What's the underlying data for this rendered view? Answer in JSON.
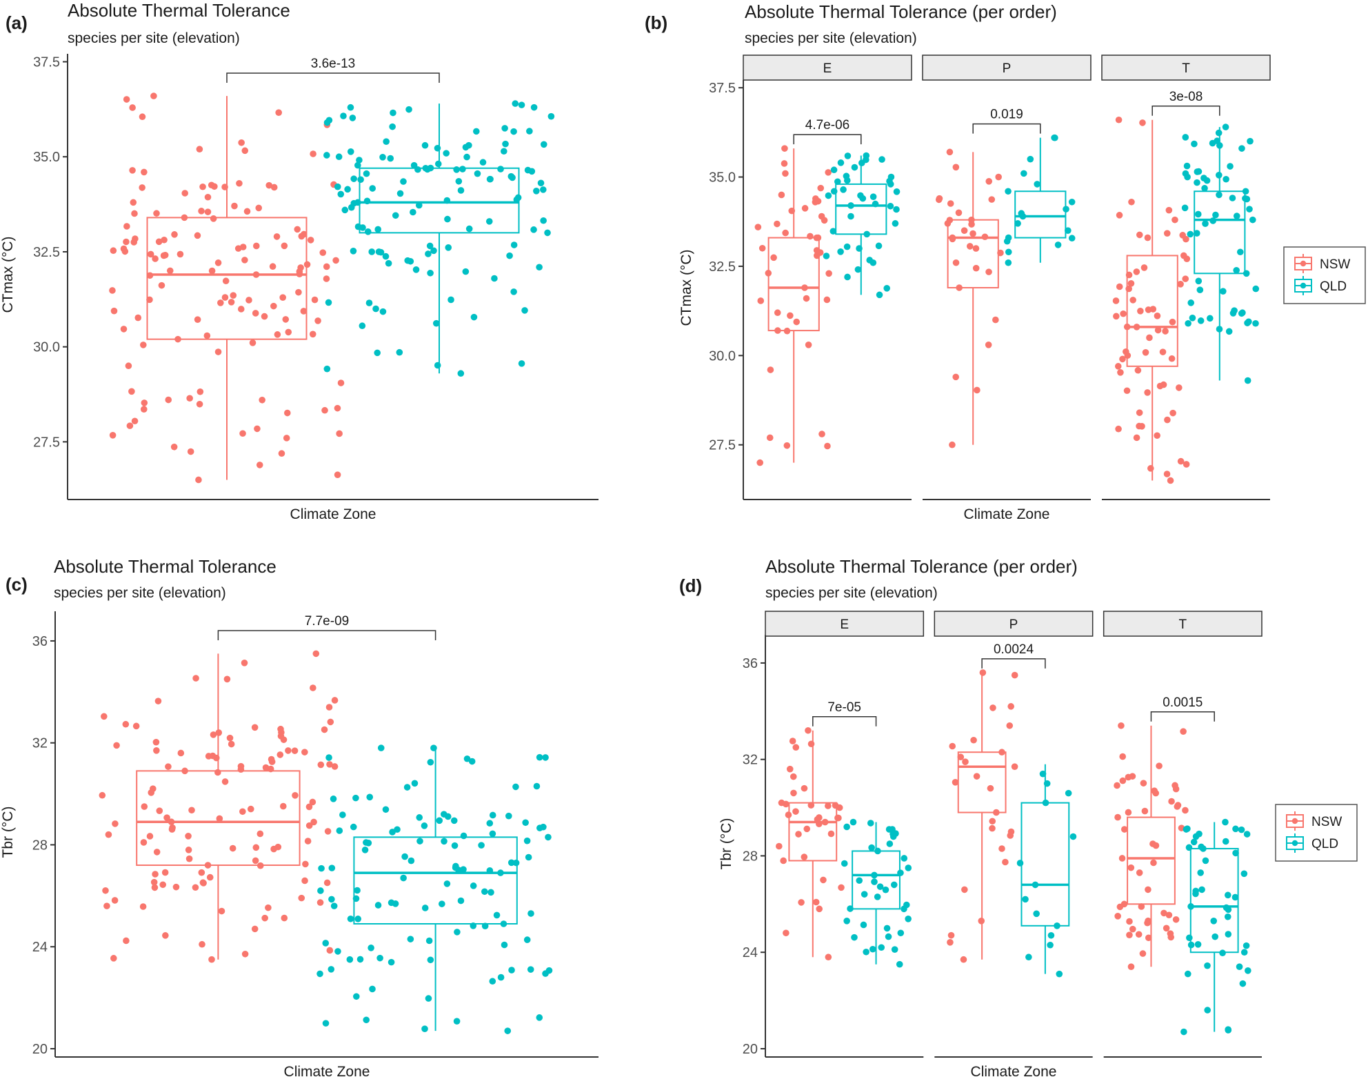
{
  "colors": {
    "NSW": "#F8766D",
    "QLD": "#00BFC4",
    "axis": "#333333",
    "strip_fill": "#EBEBEB",
    "strip_stroke": "#333333"
  },
  "legend": {
    "entries": [
      "NSW",
      "QLD"
    ]
  },
  "chart_data": [
    {
      "id": "a",
      "type": "boxplot_with_jitter",
      "panel_label": "(a)",
      "title": "Absolute Thermal Tolerance",
      "subtitle": "species per site (elevation)",
      "xlabel": "Climate Zone",
      "ylabel": "CTmax (°C)",
      "ylim": [
        26.2,
        37.6
      ],
      "yticks": [
        "27.5",
        "30.0",
        "32.5",
        "35.0",
        "37.5"
      ],
      "ytick_values": [
        27.5,
        30.0,
        32.5,
        35.0,
        37.5
      ],
      "facets": [
        {
          "strip": "",
          "pvalue": "3.6e-13",
          "groups": [
            {
              "name": "NSW",
              "min": 26.5,
              "q1": 30.2,
              "median": 31.9,
              "q3": 33.4,
              "max": 36.6,
              "n": 130,
              "seed": 11,
              "dist": [
                26.5,
                27.6,
                28.6,
                29.5,
                30.2,
                30.8,
                31.3,
                31.9,
                32.4,
                32.9,
                33.4,
                33.8,
                34.3,
                35.2,
                36.6
              ]
            },
            {
              "name": "QLD",
              "min": 29.3,
              "q1": 33.0,
              "median": 33.8,
              "q3": 34.7,
              "max": 36.4,
              "n": 120,
              "seed": 23,
              "dist": [
                29.3,
                31.0,
                31.8,
                32.5,
                33.0,
                33.3,
                33.6,
                33.8,
                34.1,
                34.4,
                34.7,
                35.0,
                35.4,
                35.9,
                36.4
              ]
            }
          ]
        }
      ]
    },
    {
      "id": "b",
      "type": "boxplot_with_jitter",
      "panel_label": "(b)",
      "title": "Absolute Thermal Tolerance (per order)",
      "subtitle": "species per site (elevation)",
      "xlabel": "Climate Zone",
      "ylabel": "CTmax (°C)",
      "ylim": [
        26.2,
        37.6
      ],
      "yticks": [
        "27.5",
        "30.0",
        "32.5",
        "35.0",
        "37.5"
      ],
      "ytick_values": [
        27.5,
        30.0,
        32.5,
        35.0,
        37.5
      ],
      "facets": [
        {
          "strip": "E",
          "pvalue": "4.7e-06",
          "groups": [
            {
              "name": "NSW",
              "min": 27.0,
              "q1": 30.7,
              "median": 31.9,
              "q3": 33.3,
              "max": 35.8,
              "n": 42,
              "seed": 31,
              "dist": [
                27.0,
                27.7,
                29.6,
                30.3,
                30.7,
                31.2,
                31.6,
                31.9,
                32.3,
                32.8,
                33.3,
                33.9,
                34.5,
                35.1,
                35.8
              ]
            },
            {
              "name": "QLD",
              "min": 31.7,
              "q1": 33.4,
              "median": 34.2,
              "q3": 34.8,
              "max": 35.6,
              "n": 40,
              "seed": 37,
              "dist": [
                31.7,
                32.2,
                32.6,
                33.0,
                33.4,
                33.7,
                33.9,
                34.2,
                34.4,
                34.6,
                34.8,
                35.0,
                35.2,
                35.4,
                35.6
              ]
            }
          ]
        },
        {
          "strip": "P",
          "pvalue": "0.019",
          "groups": [
            {
              "name": "NSW",
              "min": 27.5,
              "q1": 31.9,
              "median": 33.3,
              "q3": 33.8,
              "max": 35.7,
              "n": 30,
              "seed": 41,
              "dist": [
                27.5,
                29.4,
                30.3,
                31.0,
                31.9,
                32.6,
                33.0,
                33.3,
                33.5,
                33.7,
                33.8,
                34.0,
                34.4,
                35.0,
                35.7
              ]
            },
            {
              "name": "QLD",
              "min": 32.6,
              "q1": 33.3,
              "median": 33.9,
              "q3": 34.6,
              "max": 36.1,
              "n": 18,
              "seed": 43,
              "dist": [
                32.6,
                32.9,
                33.1,
                33.2,
                33.3,
                33.5,
                33.7,
                33.9,
                34.1,
                34.3,
                34.6,
                34.8,
                35.1,
                35.5,
                36.1
              ]
            }
          ]
        },
        {
          "strip": "T",
          "pvalue": "3e-08",
          "groups": [
            {
              "name": "NSW",
              "min": 26.5,
              "q1": 29.7,
              "median": 30.8,
              "q3": 32.8,
              "max": 36.6,
              "n": 62,
              "seed": 47,
              "dist": [
                26.5,
                27.7,
                28.4,
                29.1,
                29.7,
                30.1,
                30.5,
                30.8,
                31.3,
                32.0,
                32.8,
                33.3,
                33.8,
                34.3,
                36.6
              ]
            },
            {
              "name": "QLD",
              "min": 29.3,
              "q1": 32.3,
              "median": 33.8,
              "q3": 34.6,
              "max": 36.4,
              "n": 58,
              "seed": 53,
              "dist": [
                29.3,
                30.9,
                31.2,
                31.8,
                32.3,
                32.9,
                33.4,
                33.8,
                34.1,
                34.4,
                34.6,
                34.9,
                35.3,
                35.8,
                36.4
              ]
            }
          ]
        }
      ]
    },
    {
      "id": "c",
      "type": "boxplot_with_jitter",
      "panel_label": "(c)",
      "title": "Absolute Thermal Tolerance",
      "subtitle": "species per site (elevation)",
      "xlabel": "Climate Zone",
      "ylabel": "Tbr (°C)",
      "ylim": [
        20.0,
        37.0
      ],
      "yticks": [
        "20",
        "24",
        "28",
        "32",
        "36"
      ],
      "ytick_values": [
        20,
        24,
        28,
        32,
        36
      ],
      "facets": [
        {
          "strip": "",
          "pvalue": "7.7e-09",
          "groups": [
            {
              "name": "NSW",
              "min": 23.5,
              "q1": 27.2,
              "median": 28.9,
              "q3": 30.9,
              "max": 35.5,
              "n": 115,
              "seed": 61,
              "dist": [
                23.5,
                24.7,
                25.6,
                26.5,
                27.2,
                27.8,
                28.4,
                28.9,
                29.5,
                30.2,
                30.9,
                31.6,
                32.4,
                33.4,
                35.5
              ]
            },
            {
              "name": "QLD",
              "min": 20.7,
              "q1": 24.9,
              "median": 26.9,
              "q3": 28.3,
              "max": 31.8,
              "n": 110,
              "seed": 67,
              "dist": [
                20.7,
                22.8,
                23.5,
                24.3,
                24.9,
                25.6,
                26.2,
                26.9,
                27.3,
                27.8,
                28.3,
                28.7,
                29.2,
                30.3,
                31.8
              ]
            }
          ]
        }
      ]
    },
    {
      "id": "d",
      "type": "boxplot_with_jitter",
      "panel_label": "(d)",
      "title": "Absolute Thermal Tolerance (per order)",
      "subtitle": "species per site (elevation)",
      "xlabel": "Climate Zone",
      "ylabel": "Tbr (°C)",
      "ylim": [
        20.0,
        37.0
      ],
      "yticks": [
        "20",
        "24",
        "28",
        "32",
        "36"
      ],
      "ytick_values": [
        20,
        24,
        28,
        32,
        36
      ],
      "facets": [
        {
          "strip": "E",
          "pvalue": "7e-05",
          "groups": [
            {
              "name": "NSW",
              "min": 23.8,
              "q1": 27.8,
              "median": 29.4,
              "q3": 30.2,
              "max": 33.2,
              "n": 35,
              "seed": 71,
              "dist": [
                23.8,
                24.8,
                25.8,
                27.0,
                27.8,
                28.4,
                28.9,
                29.4,
                29.7,
                30.0,
                30.2,
                30.8,
                31.6,
                32.5,
                33.2
              ]
            },
            {
              "name": "QLD",
              "min": 23.5,
              "q1": 25.8,
              "median": 27.2,
              "q3": 28.2,
              "max": 29.4,
              "n": 38,
              "seed": 73,
              "dist": [
                23.5,
                24.2,
                24.8,
                25.3,
                25.8,
                26.3,
                26.8,
                27.2,
                27.5,
                27.9,
                28.2,
                28.5,
                28.8,
                29.1,
                29.4
              ]
            }
          ]
        },
        {
          "strip": "P",
          "pvalue": "0.0024",
          "groups": [
            {
              "name": "NSW",
              "min": 23.7,
              "q1": 29.8,
              "median": 31.7,
              "q3": 32.3,
              "max": 35.6,
              "n": 26,
              "seed": 79,
              "dist": [
                23.7,
                25.3,
                26.6,
                28.3,
                29.8,
                30.8,
                31.3,
                31.7,
                31.9,
                32.1,
                32.3,
                32.8,
                33.4,
                34.2,
                35.6
              ]
            },
            {
              "name": "QLD",
              "min": 23.1,
              "q1": 25.1,
              "median": 26.8,
              "q3": 30.2,
              "max": 31.8,
              "n": 14,
              "seed": 83,
              "dist": [
                23.1,
                23.8,
                24.3,
                24.7,
                25.1,
                25.6,
                26.2,
                26.8,
                27.7,
                28.8,
                30.2,
                30.6,
                31.0,
                31.4,
                31.8
              ]
            }
          ]
        },
        {
          "strip": "T",
          "pvalue": "0.0015",
          "groups": [
            {
              "name": "NSW",
              "min": 23.4,
              "q1": 26.0,
              "median": 27.9,
              "q3": 29.6,
              "max": 33.4,
              "n": 48,
              "seed": 89,
              "dist": [
                23.4,
                24.6,
                25.0,
                25.5,
                26.0,
                26.6,
                27.3,
                27.9,
                28.5,
                29.1,
                29.6,
                30.1,
                30.6,
                31.3,
                33.4
              ]
            },
            {
              "name": "QLD",
              "min": 20.7,
              "q1": 24.0,
              "median": 25.9,
              "q3": 28.3,
              "max": 29.4,
              "n": 44,
              "seed": 97,
              "dist": [
                20.7,
                21.6,
                22.7,
                23.4,
                24.0,
                24.6,
                25.3,
                25.9,
                26.6,
                27.3,
                28.3,
                28.6,
                28.9,
                29.1,
                29.4
              ]
            }
          ]
        }
      ]
    }
  ]
}
